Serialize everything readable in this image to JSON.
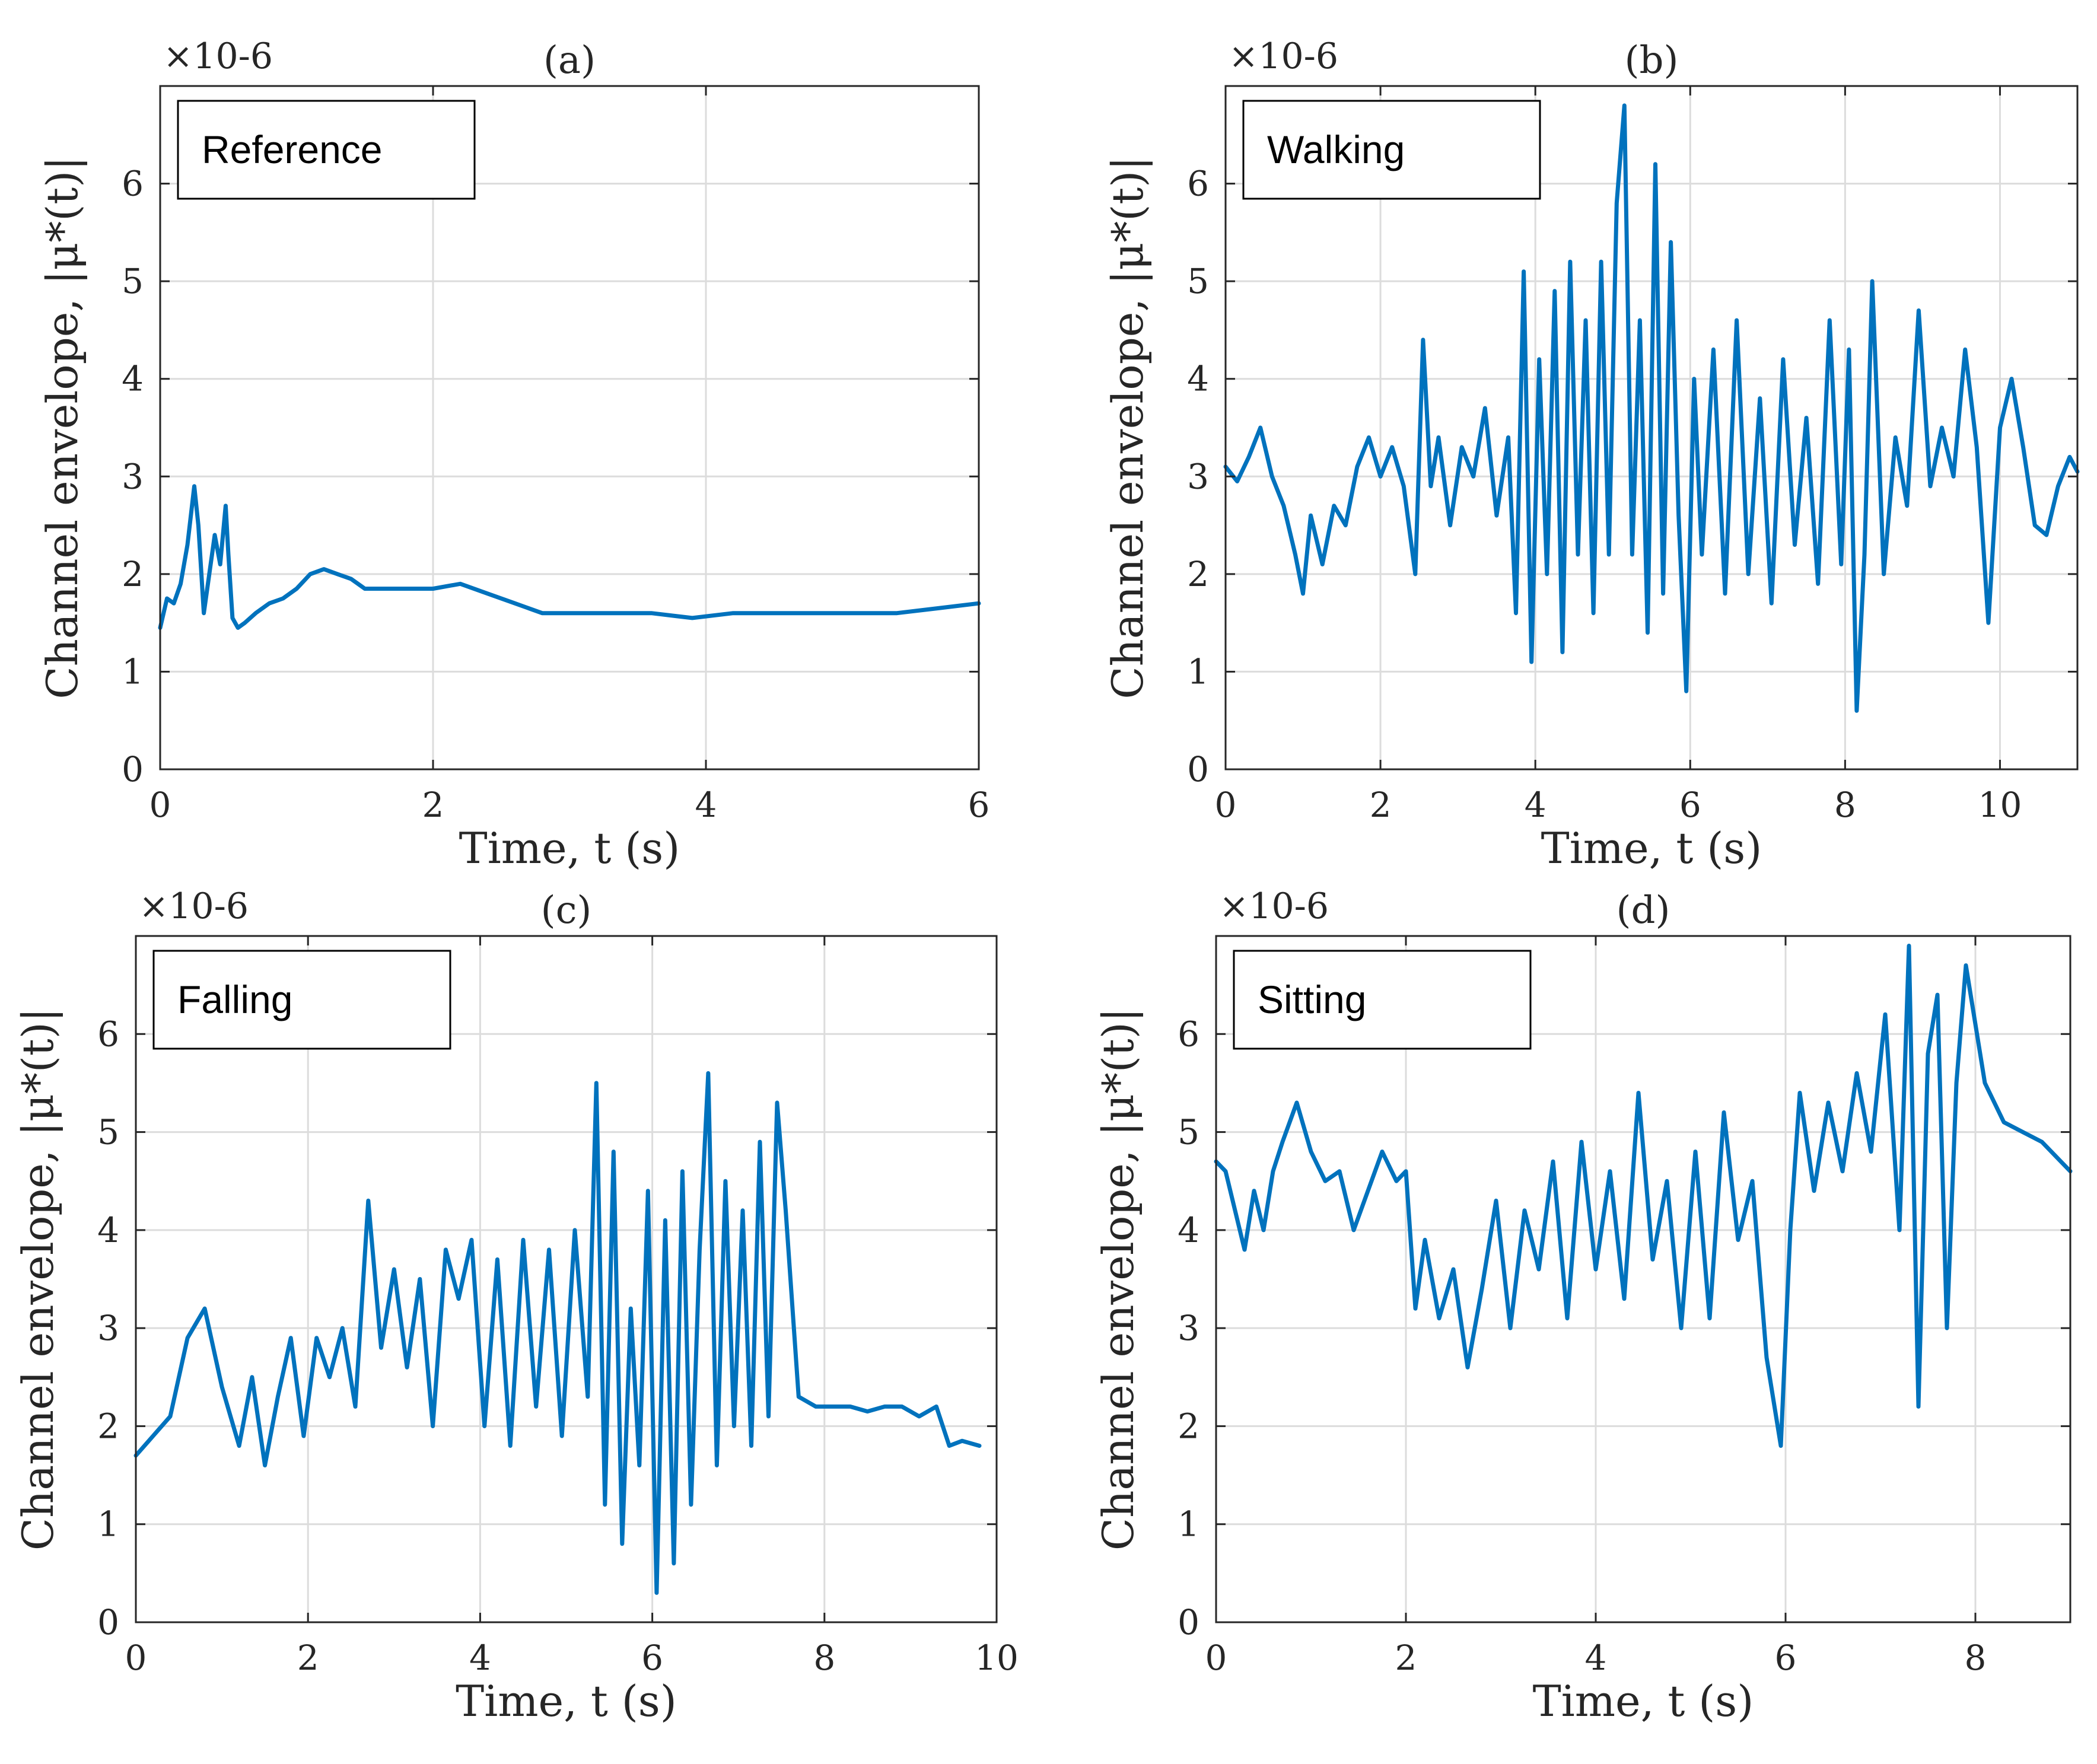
{
  "figure": {
    "background": "#ffffff",
    "line_color": "#0072bd",
    "grid_color": "#dcdcdc"
  },
  "chart_data": [
    {
      "type": "line",
      "panel": "(a)",
      "title": "(a)",
      "legend": "Reference",
      "legend_placement": "top-left",
      "xlabel": "Time, t (s)",
      "ylabel": "Channel envelope, |μ*(t)|",
      "y_scale": "×10-6",
      "xlim": [
        0,
        6
      ],
      "ylim": [
        0,
        7
      ],
      "xticks": [
        0,
        2,
        4,
        6
      ],
      "yticks": [
        0,
        1,
        2,
        3,
        4,
        5,
        6
      ],
      "grid": true,
      "series": [
        {
          "name": "Reference",
          "x": [
            0,
            0.05,
            0.1,
            0.15,
            0.2,
            0.25,
            0.28,
            0.32,
            0.36,
            0.4,
            0.44,
            0.48,
            0.5,
            0.53,
            0.57,
            0.62,
            0.7,
            0.8,
            0.9,
            1.0,
            1.1,
            1.2,
            1.3,
            1.4,
            1.5,
            1.6,
            1.8,
            2.0,
            2.2,
            2.4,
            2.6,
            2.8,
            3.0,
            3.3,
            3.6,
            3.9,
            4.2,
            4.5,
            4.8,
            5.1,
            5.4,
            5.7,
            6.0
          ],
          "y": [
            1.45,
            1.75,
            1.7,
            1.9,
            2.3,
            2.9,
            2.5,
            1.6,
            2.0,
            2.4,
            2.1,
            2.7,
            2.2,
            1.55,
            1.45,
            1.5,
            1.6,
            1.7,
            1.75,
            1.85,
            2.0,
            2.05,
            2.0,
            1.95,
            1.85,
            1.85,
            1.85,
            1.85,
            1.9,
            1.8,
            1.7,
            1.6,
            1.6,
            1.6,
            1.6,
            1.55,
            1.6,
            1.6,
            1.6,
            1.6,
            1.6,
            1.65,
            1.7
          ]
        }
      ]
    },
    {
      "type": "line",
      "panel": "(b)",
      "title": "(b)",
      "legend": "Walking",
      "legend_placement": "top-left",
      "xlabel": "Time, t (s)",
      "ylabel": "Channel envelope, |μ*(t)|",
      "y_scale": "×10-6",
      "xlim": [
        0,
        11
      ],
      "ylim": [
        0,
        7
      ],
      "xticks": [
        0,
        2,
        4,
        6,
        8,
        10
      ],
      "yticks": [
        0,
        1,
        2,
        3,
        4,
        5,
        6
      ],
      "grid": true,
      "series": [
        {
          "name": "Walking",
          "x": [
            0,
            0.15,
            0.3,
            0.45,
            0.6,
            0.75,
            0.9,
            1.0,
            1.1,
            1.25,
            1.4,
            1.55,
            1.7,
            1.85,
            2.0,
            2.15,
            2.3,
            2.45,
            2.55,
            2.65,
            2.75,
            2.9,
            3.05,
            3.2,
            3.35,
            3.5,
            3.65,
            3.75,
            3.85,
            3.95,
            4.05,
            4.15,
            4.25,
            4.35,
            4.45,
            4.55,
            4.65,
            4.75,
            4.85,
            4.95,
            5.05,
            5.15,
            5.25,
            5.35,
            5.45,
            5.55,
            5.65,
            5.75,
            5.85,
            5.95,
            6.05,
            6.15,
            6.3,
            6.45,
            6.6,
            6.75,
            6.9,
            7.05,
            7.2,
            7.35,
            7.5,
            7.65,
            7.8,
            7.95,
            8.05,
            8.15,
            8.25,
            8.35,
            8.5,
            8.65,
            8.8,
            8.95,
            9.1,
            9.25,
            9.4,
            9.55,
            9.7,
            9.85,
            10.0,
            10.15,
            10.3,
            10.45,
            10.6,
            10.75,
            10.9,
            11.0
          ],
          "y": [
            3.1,
            2.95,
            3.2,
            3.5,
            3.0,
            2.7,
            2.2,
            1.8,
            2.6,
            2.1,
            2.7,
            2.5,
            3.1,
            3.4,
            3.0,
            3.3,
            2.9,
            2.0,
            4.4,
            2.9,
            3.4,
            2.5,
            3.3,
            3.0,
            3.7,
            2.6,
            3.4,
            1.6,
            5.1,
            1.1,
            4.2,
            2.0,
            4.9,
            1.2,
            5.2,
            2.2,
            4.6,
            1.6,
            5.2,
            2.2,
            5.8,
            6.8,
            2.2,
            4.6,
            1.4,
            6.2,
            1.8,
            5.4,
            2.6,
            0.8,
            4.0,
            2.2,
            4.3,
            1.8,
            4.6,
            2.0,
            3.8,
            1.7,
            4.2,
            2.3,
            3.6,
            1.9,
            4.6,
            2.1,
            4.3,
            0.6,
            2.2,
            5.0,
            2.0,
            3.4,
            2.7,
            4.7,
            2.9,
            3.5,
            3.0,
            4.3,
            3.3,
            1.5,
            3.5,
            4.0,
            3.3,
            2.5,
            2.4,
            2.9,
            3.2,
            3.05
          ]
        }
      ]
    },
    {
      "type": "line",
      "panel": "(c)",
      "title": "(c)",
      "legend": "Falling",
      "legend_placement": "top-left",
      "xlabel": "Time, t (s)",
      "ylabel": "Channel envelope, |μ*(t)|",
      "y_scale": "×10-6",
      "xlim": [
        0,
        10
      ],
      "ylim": [
        0,
        7
      ],
      "xticks": [
        0,
        2,
        4,
        6,
        8,
        10
      ],
      "yticks": [
        0,
        1,
        2,
        3,
        4,
        5,
        6
      ],
      "grid": true,
      "series": [
        {
          "name": "Falling",
          "x": [
            0,
            0.2,
            0.4,
            0.6,
            0.8,
            1.0,
            1.2,
            1.35,
            1.5,
            1.65,
            1.8,
            1.95,
            2.1,
            2.25,
            2.4,
            2.55,
            2.7,
            2.85,
            3.0,
            3.15,
            3.3,
            3.45,
            3.6,
            3.75,
            3.9,
            4.05,
            4.2,
            4.35,
            4.5,
            4.65,
            4.8,
            4.95,
            5.1,
            5.25,
            5.35,
            5.45,
            5.55,
            5.65,
            5.75,
            5.85,
            5.95,
            6.05,
            6.15,
            6.25,
            6.35,
            6.45,
            6.55,
            6.65,
            6.75,
            6.85,
            6.95,
            7.05,
            7.15,
            7.25,
            7.35,
            7.45,
            7.55,
            7.7,
            7.9,
            8.1,
            8.3,
            8.5,
            8.7,
            8.9,
            9.1,
            9.3,
            9.45,
            9.6,
            9.8
          ],
          "y": [
            1.7,
            1.9,
            2.1,
            2.9,
            3.2,
            2.4,
            1.8,
            2.5,
            1.6,
            2.3,
            2.9,
            1.9,
            2.9,
            2.5,
            3.0,
            2.2,
            4.3,
            2.8,
            3.6,
            2.6,
            3.5,
            2.0,
            3.8,
            3.3,
            3.9,
            2.0,
            3.7,
            1.8,
            3.9,
            2.2,
            3.8,
            1.9,
            4.0,
            2.3,
            5.5,
            1.2,
            4.8,
            0.8,
            3.2,
            1.6,
            4.4,
            0.3,
            4.1,
            0.6,
            4.6,
            1.2,
            3.8,
            5.6,
            1.6,
            4.5,
            2.0,
            4.2,
            1.8,
            4.9,
            2.1,
            5.3,
            4.2,
            2.3,
            2.2,
            2.2,
            2.2,
            2.15,
            2.2,
            2.2,
            2.1,
            2.2,
            1.8,
            1.85,
            1.8
          ]
        }
      ]
    },
    {
      "type": "line",
      "panel": "(d)",
      "title": "(d)",
      "legend": "Sitting",
      "legend_placement": "top-left",
      "xlabel": "Time, t (s)",
      "ylabel": "Channel envelope, |μ*(t)|",
      "y_scale": "×10-6",
      "xlim": [
        0,
        9
      ],
      "ylim": [
        0,
        7
      ],
      "xticks": [
        0,
        2,
        4,
        6,
        8
      ],
      "yticks": [
        0,
        1,
        2,
        3,
        4,
        5,
        6
      ],
      "grid": true,
      "series": [
        {
          "name": "Sitting",
          "x": [
            0,
            0.1,
            0.2,
            0.3,
            0.4,
            0.5,
            0.6,
            0.7,
            0.85,
            1.0,
            1.15,
            1.3,
            1.45,
            1.6,
            1.75,
            1.9,
            2.0,
            2.1,
            2.2,
            2.35,
            2.5,
            2.65,
            2.8,
            2.95,
            3.1,
            3.25,
            3.4,
            3.55,
            3.7,
            3.85,
            4.0,
            4.15,
            4.3,
            4.45,
            4.6,
            4.75,
            4.9,
            5.05,
            5.2,
            5.35,
            5.5,
            5.65,
            5.8,
            5.95,
            6.05,
            6.15,
            6.3,
            6.45,
            6.6,
            6.75,
            6.9,
            7.05,
            7.2,
            7.3,
            7.4,
            7.5,
            7.6,
            7.7,
            7.8,
            7.9,
            8.1,
            8.3,
            8.5,
            8.7,
            8.9,
            9.0
          ],
          "y": [
            4.7,
            4.6,
            4.2,
            3.8,
            4.4,
            4.0,
            4.6,
            4.9,
            5.3,
            4.8,
            4.5,
            4.6,
            4.0,
            4.4,
            4.8,
            4.5,
            4.6,
            3.2,
            3.9,
            3.1,
            3.6,
            2.6,
            3.4,
            4.3,
            3.0,
            4.2,
            3.6,
            4.7,
            3.1,
            4.9,
            3.6,
            4.6,
            3.3,
            5.4,
            3.7,
            4.5,
            3.0,
            4.8,
            3.1,
            5.2,
            3.9,
            4.5,
            2.7,
            1.8,
            4.0,
            5.4,
            4.4,
            5.3,
            4.6,
            5.6,
            4.8,
            6.2,
            4.0,
            6.9,
            2.2,
            5.8,
            6.4,
            3.0,
            5.5,
            6.7,
            5.5,
            5.1,
            5.0,
            4.9,
            4.7,
            4.6
          ]
        }
      ]
    }
  ]
}
